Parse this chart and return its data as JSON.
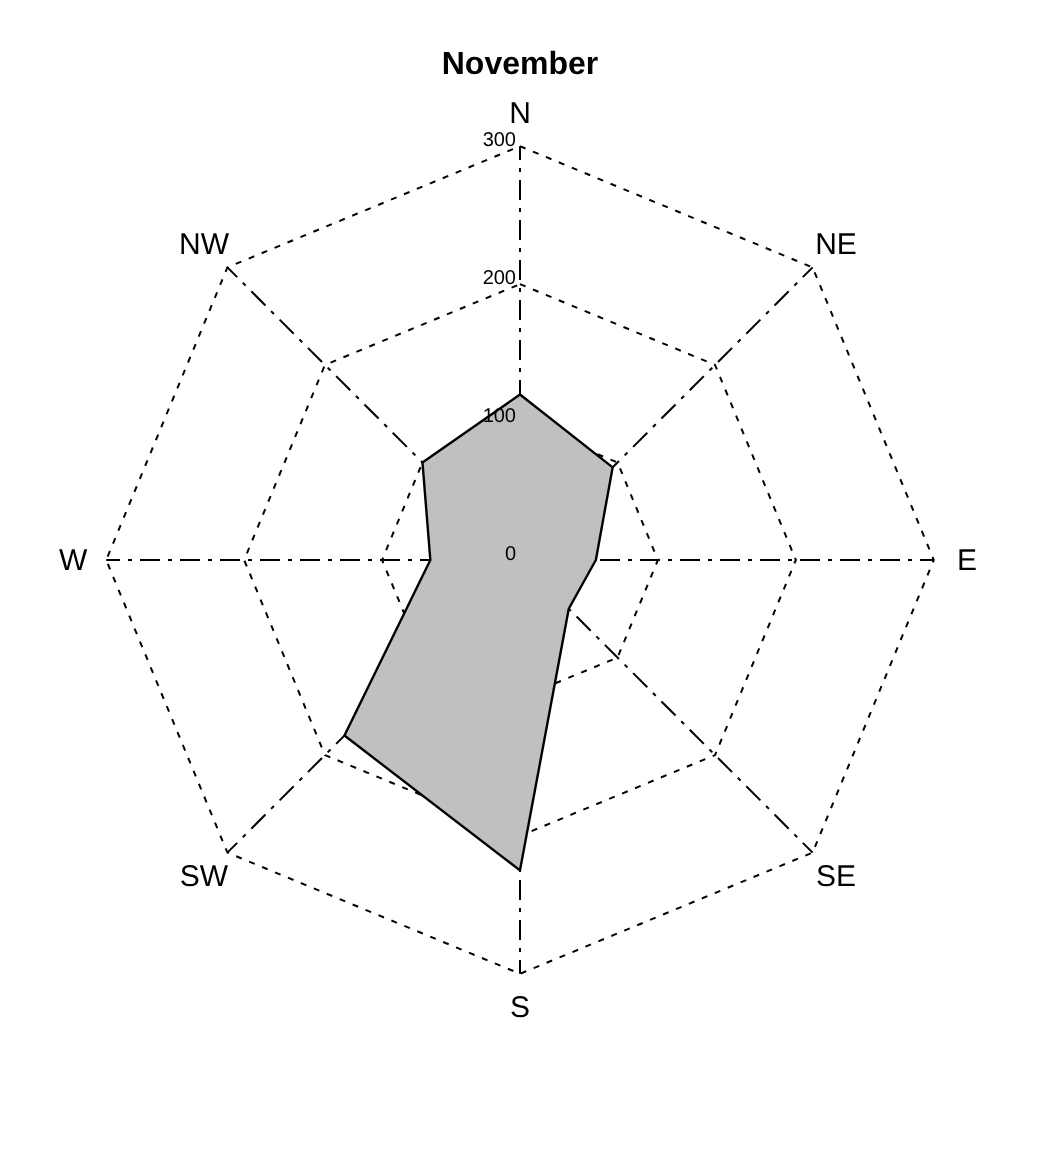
{
  "chart_data": {
    "type": "radar",
    "title": "November",
    "categories": [
      "N",
      "NE",
      "E",
      "SE",
      "S",
      "SW",
      "W",
      "NW"
    ],
    "series": [
      {
        "color": "#c0c0c0",
        "values": [
          120,
          95,
          55,
          50,
          225,
          180,
          65,
          100
        ]
      }
    ],
    "ylim": [
      0,
      300
    ],
    "yticks": [
      0,
      100,
      200,
      300
    ],
    "grid": true,
    "marker": "none",
    "line_style": "solid"
  }
}
